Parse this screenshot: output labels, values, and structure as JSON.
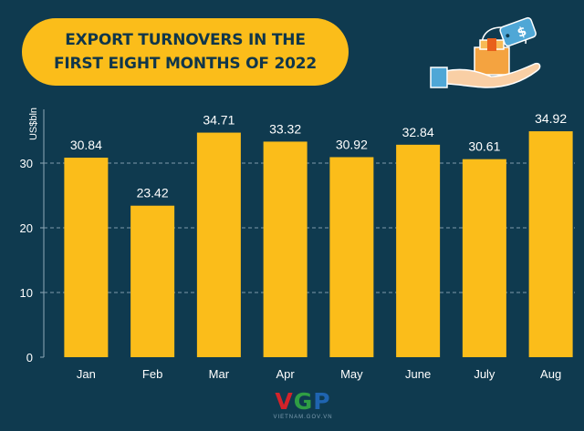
{
  "title": "EXPORT TURNOVERS IN THE FIRST EIGHT MONTHS OF 2022",
  "logo": {
    "letters": [
      "V",
      "G",
      "P"
    ],
    "colors": [
      "#d3232a",
      "#2f9e44",
      "#1f64b0"
    ],
    "subtitle": "VIETNAM.GOV.VN"
  },
  "colors": {
    "background": "#0f3a4f",
    "bar": "#fbbd1a",
    "title_bg": "#fbbd1a",
    "text": "#ffffff",
    "title_text": "#10364a"
  },
  "chart_data": {
    "type": "bar",
    "title": "EXPORT TURNOVERS IN THE FIRST EIGHT MONTHS OF 2022",
    "xlabel": "",
    "ylabel": "US$bln",
    "categories": [
      "Jan",
      "Feb",
      "Mar",
      "Apr",
      "May",
      "June",
      "July",
      "Aug"
    ],
    "values": [
      30.84,
      23.42,
      34.71,
      33.32,
      30.92,
      32.84,
      30.61,
      34.92
    ],
    "value_labels": [
      "30.84",
      "23.42",
      "34.71",
      "33.32",
      "30.92",
      "32.84",
      "30.61",
      "34.92"
    ],
    "yticks": [
      "0",
      "10",
      "20",
      "30"
    ],
    "ylim": [
      0,
      40
    ],
    "grid": true
  }
}
